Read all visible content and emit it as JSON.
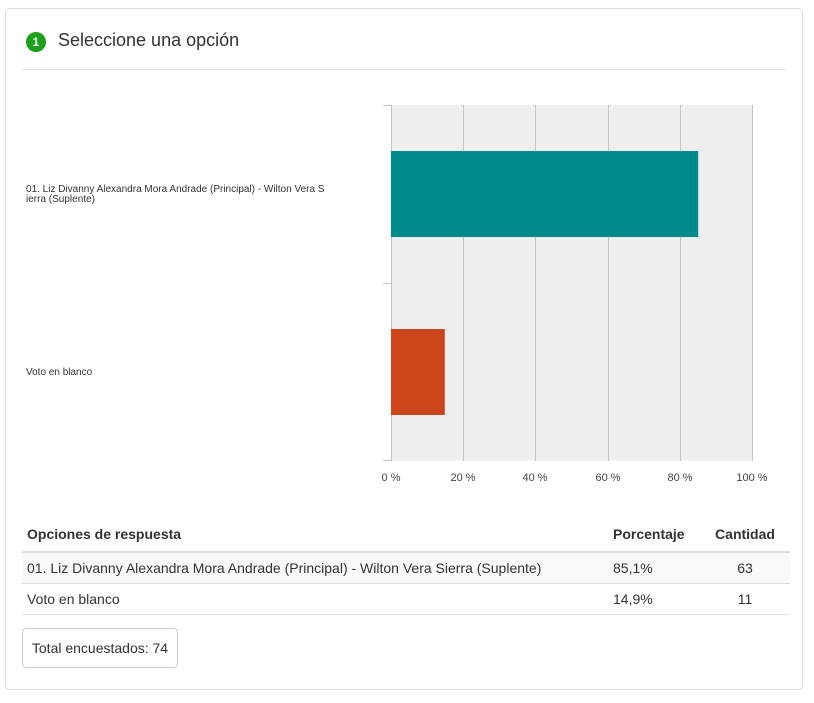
{
  "question": {
    "number": "1",
    "title": "Seleccione una opción"
  },
  "chart_data": {
    "type": "bar",
    "orientation": "horizontal",
    "categories": [
      "01. Liz Divanny Alexandra Mora Andrade (Principal) - Wilton Vera Sierra (Suplente)",
      "Voto en blanco"
    ],
    "values": [
      85.1,
      14.9
    ],
    "colors": [
      "#008b8b",
      "#cc4419"
    ],
    "xlim": [
      0,
      100
    ],
    "x_ticks": [
      "0 %",
      "20 %",
      "40 %",
      "60 %",
      "80 %",
      "100 %"
    ],
    "grid": true,
    "plot_background": "#efefef"
  },
  "table": {
    "headers": {
      "option": "Opciones de respuesta",
      "percent": "Porcentaje",
      "count": "Cantidad"
    },
    "rows": [
      {
        "option": "01. Liz Divanny Alexandra Mora Andrade (Principal) - Wilton Vera Sierra (Suplente)",
        "percent": "85,1%",
        "count": "63"
      },
      {
        "option": "Voto en blanco",
        "percent": "14,9%",
        "count": "11"
      }
    ]
  },
  "total": "Total encuestados: 74"
}
